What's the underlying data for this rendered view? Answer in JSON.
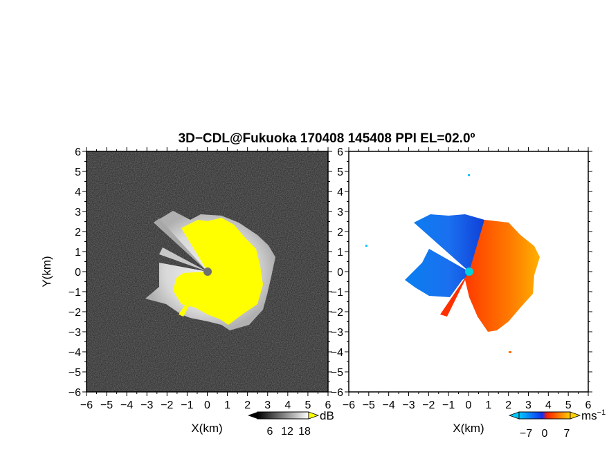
{
  "chart_data": {
    "title": "3D−CDL@Fukuoka 170408 145408 PPI EL=02.0º",
    "panels": [
      {
        "type": "heatmap",
        "quantity": "",
        "xlabel": "X(km)",
        "ylabel": "Y(km)",
        "xlim": [
          -6,
          6
        ],
        "ylim": [
          -6,
          6
        ],
        "xticks": [
          "−6",
          "−5",
          "−4",
          "−3",
          "−2",
          "−1",
          "0",
          "1",
          "2",
          "3",
          "4",
          "5",
          "6"
        ],
        "yticks": [
          "6",
          "5",
          "4",
          "3",
          "2",
          "1",
          "0",
          "−1",
          "−2",
          "−3",
          "−4",
          "−5",
          "−6"
        ],
        "background_color": "#2a2a2a",
        "high_value_color": "#ffff00",
        "colorbar": {
          "unit": "dB",
          "ticks": [
            "6",
            "12",
            "18"
          ],
          "range": [
            0,
            24
          ]
        }
      },
      {
        "type": "heatmap",
        "quantity": "",
        "xlabel": "X(km)",
        "ylabel": "",
        "xlim": [
          -6,
          6
        ],
        "ylim": [
          -6,
          6
        ],
        "xticks": [
          "−6",
          "−5",
          "−4",
          "−3",
          "−2",
          "−1",
          "0",
          "1",
          "2",
          "3",
          "4",
          "5",
          "6"
        ],
        "yticks": [
          "6",
          "5",
          "4",
          "3",
          "2",
          "1",
          "0",
          "−1",
          "−2",
          "−3",
          "−4",
          "−5",
          "−6"
        ],
        "colorbar": {
          "unit": "ms",
          "unit_exp": "−1",
          "ticks": [
            "−7",
            "0",
            "7"
          ],
          "range": [
            -10,
            10
          ]
        },
        "colors": {
          "negative": "#1060e8",
          "positive": "#ff5000"
        }
      }
    ],
    "radar_center": [
      0,
      0
    ]
  }
}
